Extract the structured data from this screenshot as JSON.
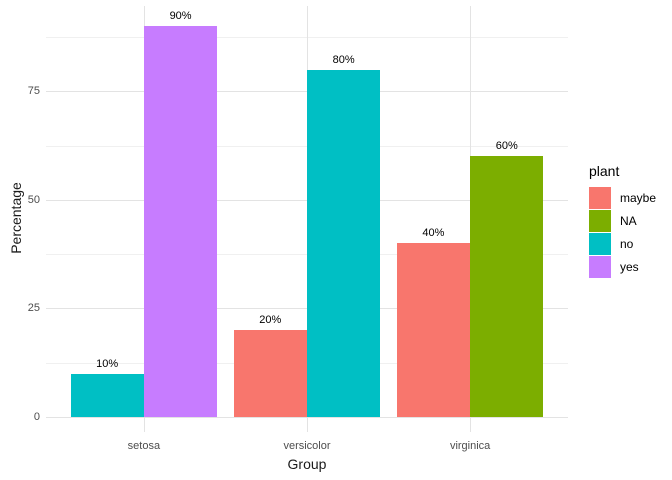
{
  "chart_data": {
    "type": "bar",
    "title": "",
    "xlabel": "Group",
    "ylabel": "Percentage",
    "ylim": [
      0,
      94.6
    ],
    "y_major_ticks": [
      0,
      25,
      50,
      75
    ],
    "y_minor_ticks": [
      12.5,
      37.5,
      62.5,
      87.5
    ],
    "y_tick_labels": [
      "0",
      "25",
      "50",
      "75"
    ],
    "categories": [
      "setosa",
      "versicolor",
      "virginica"
    ],
    "series": [
      {
        "name": "maybe",
        "color": "#F8766D",
        "values": [
          null,
          20,
          40
        ],
        "labels": [
          null,
          "20%",
          "40%"
        ]
      },
      {
        "name": "NA",
        "color": "#7CAE00",
        "values": [
          null,
          null,
          60
        ],
        "labels": [
          null,
          null,
          "60%"
        ]
      },
      {
        "name": "no",
        "color": "#00BFC4",
        "values": [
          10,
          80,
          null
        ],
        "labels": [
          "10%",
          "80%",
          null
        ]
      },
      {
        "name": "yes",
        "color": "#C77CFF",
        "values": [
          90,
          null,
          null
        ],
        "labels": [
          "90%",
          null,
          null
        ]
      }
    ],
    "legend_position": "right",
    "grid": "major+minor"
  },
  "legend": {
    "title": "plant",
    "items": [
      {
        "label": "maybe",
        "color": "#F8766D"
      },
      {
        "label": "NA",
        "color": "#7CAE00"
      },
      {
        "label": "no",
        "color": "#00BFC4"
      },
      {
        "label": "yes",
        "color": "#C77CFF"
      }
    ]
  },
  "colors": {
    "grid_major": "#E3E3E3",
    "grid_minor": "#F0F0F0",
    "tick_label": "#4D4D4D",
    "axis_title": "#1A1A1A",
    "bar_label": "#000000",
    "background": "#FFFFFF"
  }
}
